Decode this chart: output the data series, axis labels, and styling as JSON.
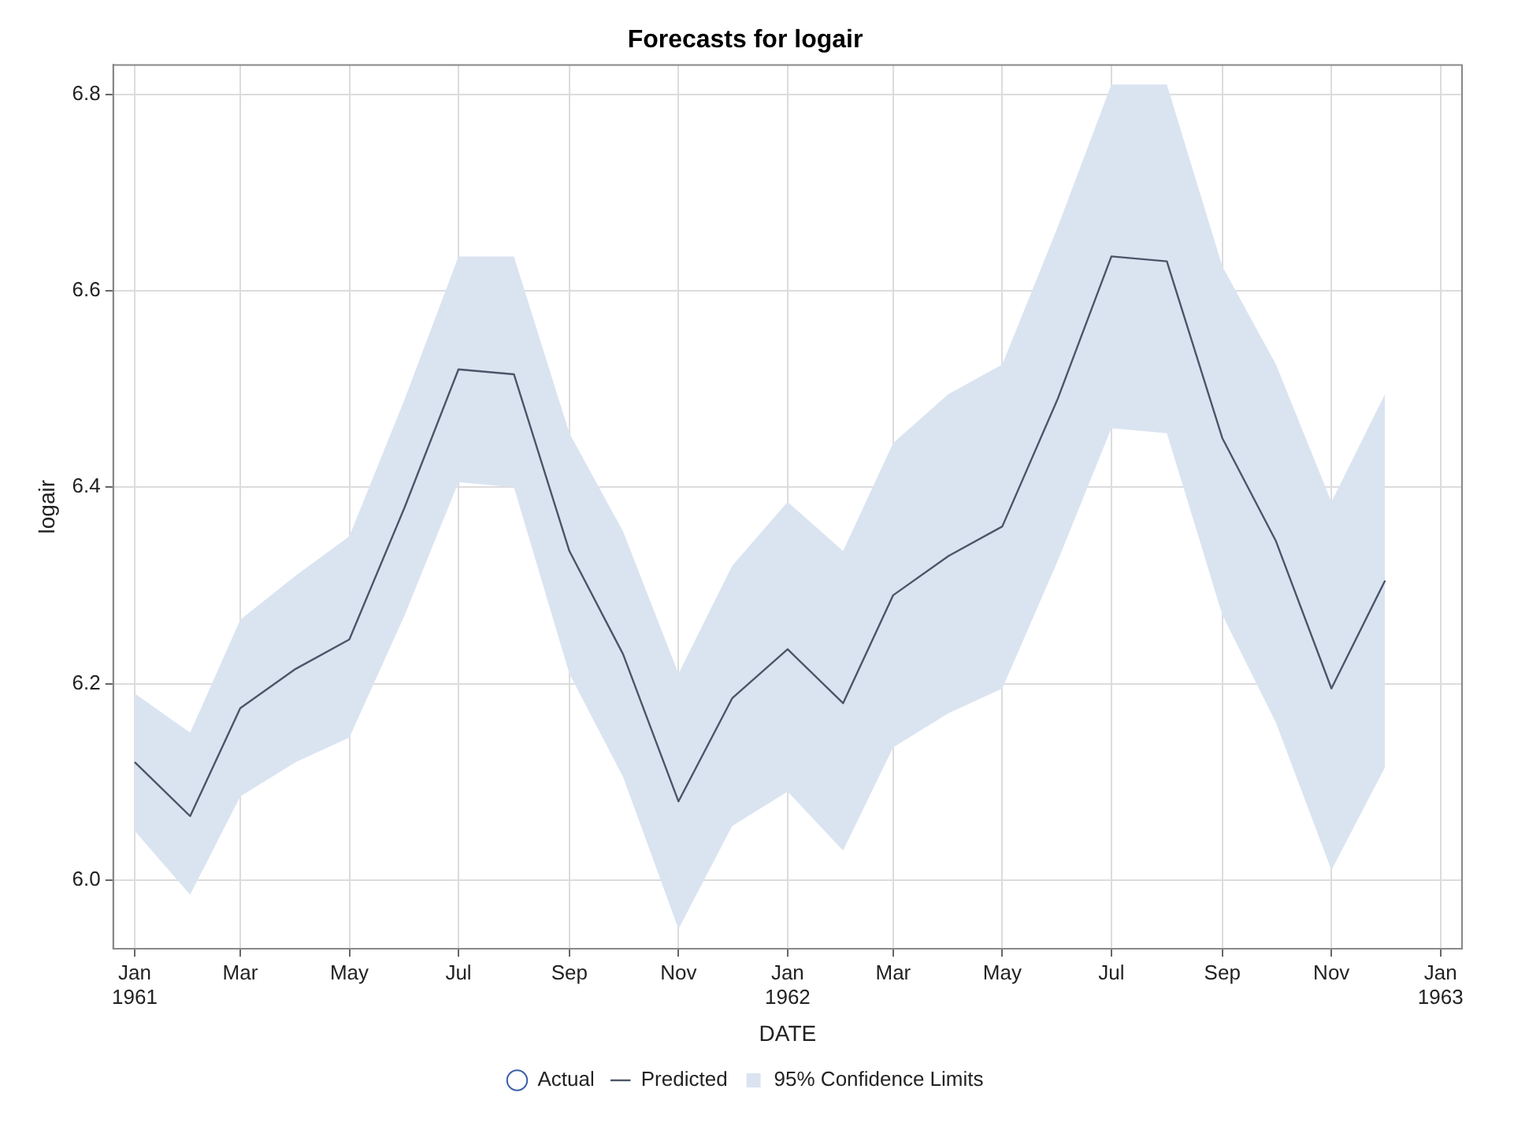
{
  "chart_data": {
    "type": "line",
    "title": "Forecasts for logair",
    "xlabel": "DATE",
    "ylabel": "logair",
    "x": [
      "1961-01",
      "1961-02",
      "1961-03",
      "1961-04",
      "1961-05",
      "1961-06",
      "1961-07",
      "1961-08",
      "1961-09",
      "1961-10",
      "1961-11",
      "1961-12",
      "1962-01",
      "1962-02",
      "1962-03",
      "1962-04",
      "1962-05",
      "1962-06",
      "1962-07",
      "1962-08",
      "1962-09",
      "1962-10",
      "1962-11",
      "1962-12"
    ],
    "series": [
      {
        "name": "Actual",
        "type": "scatter",
        "color": "#3a5ea8",
        "marker": "circle",
        "values": [
          null,
          null,
          null,
          null,
          null,
          null,
          null,
          null,
          null,
          null,
          null,
          null,
          null,
          null,
          null,
          null,
          null,
          null,
          null,
          null,
          null,
          null,
          null,
          null
        ]
      },
      {
        "name": "Predicted",
        "color": "#4a5668",
        "marker": "none",
        "line_style": "solid",
        "values": [
          6.12,
          6.065,
          6.175,
          6.215,
          6.245,
          6.38,
          6.52,
          6.515,
          6.335,
          6.23,
          6.08,
          6.185,
          6.235,
          6.18,
          6.29,
          6.33,
          6.36,
          6.49,
          6.635,
          6.63,
          6.45,
          6.345,
          6.195,
          6.305
        ]
      },
      {
        "name": "95% Confidence Limits",
        "type": "area",
        "color": "#dae4f1",
        "values": [
          null,
          null,
          null,
          null,
          null,
          null,
          null,
          null,
          null,
          null,
          null,
          null,
          null,
          null,
          null,
          null,
          null,
          null,
          null,
          null,
          null,
          null,
          null,
          null
        ],
        "lower": [
          6.05,
          5.985,
          6.085,
          6.12,
          6.145,
          6.27,
          6.405,
          6.4,
          6.21,
          6.105,
          5.95,
          6.055,
          6.09,
          6.03,
          6.135,
          6.17,
          6.195,
          6.325,
          6.46,
          6.455,
          6.27,
          6.16,
          6.01,
          6.115
        ],
        "upper": [
          6.19,
          6.15,
          6.265,
          6.31,
          6.35,
          6.49,
          6.635,
          6.635,
          6.455,
          6.355,
          6.21,
          6.32,
          6.385,
          6.335,
          6.445,
          6.495,
          6.525,
          6.665,
          6.81,
          6.81,
          6.625,
          6.525,
          6.385,
          6.495
        ]
      }
    ],
    "xlim": [
      "1960-12-20",
      "1963-01-13"
    ],
    "xticks": [
      {
        "value": "1961-01",
        "label": "Jan 1961"
      },
      {
        "value": "1961-03",
        "label": "Mar"
      },
      {
        "value": "1961-05",
        "label": "May"
      },
      {
        "value": "1961-07",
        "label": "Jul"
      },
      {
        "value": "1961-09",
        "label": "Sep"
      },
      {
        "value": "1961-11",
        "label": "Nov"
      },
      {
        "value": "1962-01",
        "label": "Jan 1962"
      },
      {
        "value": "1962-03",
        "label": "Mar"
      },
      {
        "value": "1962-05",
        "label": "May"
      },
      {
        "value": "1962-07",
        "label": "Jul"
      },
      {
        "value": "1962-09",
        "label": "Sep"
      },
      {
        "value": "1962-11",
        "label": "Nov"
      },
      {
        "value": "1963-01",
        "label": "Jan 1963"
      }
    ],
    "ylim": [
      5.93,
      6.83
    ],
    "yticks": [
      {
        "value": 6,
        "label": "6.0"
      },
      6.2,
      6.4,
      6.6,
      {
        "value": 6.8,
        "label": "6.8"
      }
    ],
    "grid": true,
    "legend": "bottom"
  }
}
